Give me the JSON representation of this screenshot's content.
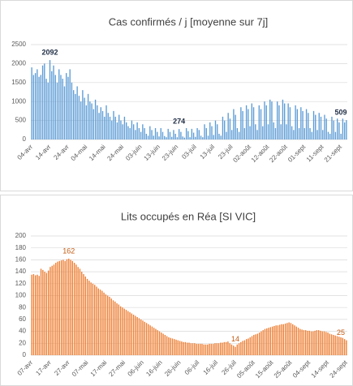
{
  "chart_data": [
    {
      "type": "bar",
      "title": "Cas confirmés / j [moyenne sur 7j]",
      "color": "#5b9bd5",
      "label_color": "#1f2d44",
      "grid": true,
      "ylim": [
        0,
        2500
      ],
      "yticks": [
        0,
        500,
        1000,
        1500,
        2000,
        2500
      ],
      "categories": [
        "04-avr",
        null,
        null,
        null,
        null,
        null,
        null,
        null,
        null,
        null,
        "14-avr",
        null,
        null,
        null,
        null,
        null,
        null,
        null,
        null,
        null,
        "24-avr",
        null,
        null,
        null,
        null,
        null,
        null,
        null,
        null,
        null,
        "04-mai",
        null,
        null,
        null,
        null,
        null,
        null,
        null,
        null,
        null,
        "14-mai",
        null,
        null,
        null,
        null,
        null,
        null,
        null,
        null,
        null,
        "24-mai",
        null,
        null,
        null,
        null,
        null,
        null,
        null,
        null,
        null,
        "03-juin",
        null,
        null,
        null,
        null,
        null,
        null,
        null,
        null,
        null,
        "13-juin",
        null,
        null,
        null,
        null,
        null,
        null,
        null,
        null,
        null,
        "23-juin",
        null,
        null,
        null,
        null,
        null,
        null,
        null,
        null,
        null,
        "03-juil",
        null,
        null,
        null,
        null,
        null,
        null,
        null,
        null,
        null,
        "13-juil",
        null,
        null,
        null,
        null,
        null,
        null,
        null,
        null,
        null,
        "23-juil",
        null,
        null,
        null,
        null,
        null,
        null,
        null,
        null,
        null,
        "02-août",
        null,
        null,
        null,
        null,
        null,
        null,
        null,
        null,
        null,
        "12-août",
        null,
        null,
        null,
        null,
        null,
        null,
        null,
        null,
        null,
        "22-août",
        null,
        null,
        null,
        null,
        null,
        null,
        null,
        null,
        null,
        "01-sept",
        null,
        null,
        null,
        null,
        null,
        null,
        null,
        null,
        null,
        "11-sept",
        null,
        null,
        null,
        null,
        null,
        null,
        null,
        null,
        null,
        "21-sept",
        null,
        null,
        null
      ],
      "values": [
        1900,
        1700,
        1750,
        1850,
        1650,
        1700,
        1950,
        2000,
        1600,
        1500,
        2092,
        1800,
        1950,
        1700,
        1500,
        1850,
        1700,
        1600,
        1400,
        1750,
        1650,
        1850,
        1500,
        1300,
        1200,
        1400,
        1150,
        1000,
        1300,
        1100,
        900,
        1200,
        1000,
        950,
        800,
        1050,
        900,
        700,
        850,
        750,
        600,
        900,
        700,
        600,
        500,
        750,
        600,
        450,
        650,
        500,
        400,
        600,
        450,
        350,
        300,
        500,
        400,
        250,
        450,
        300,
        200,
        400,
        300,
        150,
        100,
        350,
        250,
        100,
        300,
        200,
        80,
        300,
        200,
        90,
        60,
        280,
        200,
        70,
        250,
        150,
        60,
        274,
        200,
        80,
        50,
        300,
        220,
        60,
        280,
        180,
        70,
        300,
        250,
        100,
        60,
        400,
        300,
        100,
        450,
        350,
        120,
        500,
        400,
        150,
        100,
        600,
        500,
        200,
        700,
        550,
        250,
        800,
        650,
        300,
        200,
        850,
        750,
        300,
        900,
        800,
        350,
        950,
        850,
        400,
        250,
        900,
        800,
        350,
        1000,
        900,
        400,
        1050,
        1000,
        450,
        300,
        1000,
        900,
        400,
        1050,
        950,
        400,
        950,
        850,
        350,
        250,
        900,
        800,
        300,
        850,
        750,
        300,
        800,
        700,
        300,
        200,
        750,
        650,
        250,
        700,
        600,
        250,
        650,
        550,
        200,
        150,
        600,
        500,
        200,
        550,
        450,
        150,
        550,
        450,
        509
      ],
      "value_labels": [
        null,
        null,
        null,
        null,
        null,
        null,
        null,
        null,
        null,
        null,
        "2092",
        null,
        null,
        null,
        null,
        null,
        null,
        null,
        null,
        null,
        null,
        null,
        null,
        null,
        null,
        null,
        null,
        null,
        null,
        null,
        null,
        null,
        null,
        null,
        null,
        null,
        null,
        null,
        null,
        null,
        null,
        null,
        null,
        null,
        null,
        null,
        null,
        null,
        null,
        null,
        null,
        null,
        null,
        null,
        null,
        null,
        null,
        null,
        null,
        null,
        null,
        null,
        null,
        null,
        null,
        null,
        null,
        null,
        null,
        null,
        null,
        null,
        null,
        null,
        null,
        null,
        null,
        null,
        null,
        null,
        null,
        "274",
        null,
        null,
        null,
        null,
        null,
        null,
        null,
        null,
        null,
        null,
        null,
        null,
        null,
        null,
        null,
        null,
        null,
        null,
        null,
        null,
        null,
        null,
        null,
        null,
        null,
        null,
        null,
        null,
        null,
        null,
        null,
        null,
        null,
        null,
        null,
        null,
        null,
        null,
        null,
        null,
        null,
        null,
        null,
        null,
        null,
        null,
        null,
        null,
        null,
        null,
        null,
        null,
        null,
        null,
        null,
        null,
        null,
        null,
        null,
        null,
        null,
        null,
        null,
        null,
        null,
        null,
        null,
        null,
        null,
        null,
        null,
        null,
        null,
        null,
        null,
        null,
        null,
        null,
        null,
        null,
        null,
        null,
        null,
        null,
        null,
        null,
        null,
        null,
        null,
        null,
        null,
        "509"
      ]
    },
    {
      "type": "bar",
      "title": "Lits occupés en Réa [SI VIC]",
      "color": "#ed7d31",
      "label_color": "#c55a11",
      "grid": true,
      "ylim": [
        0,
        200
      ],
      "yticks": [
        0,
        20,
        40,
        60,
        80,
        100,
        120,
        140,
        160,
        180,
        200
      ],
      "categories": [
        "07-avr",
        null,
        null,
        null,
        null,
        null,
        null,
        null,
        null,
        null,
        "17-avr",
        null,
        null,
        null,
        null,
        null,
        null,
        null,
        null,
        null,
        "27-avr",
        null,
        null,
        null,
        null,
        null,
        null,
        null,
        null,
        null,
        "07-mai",
        null,
        null,
        null,
        null,
        null,
        null,
        null,
        null,
        null,
        "17-mai",
        null,
        null,
        null,
        null,
        null,
        null,
        null,
        null,
        null,
        "27-mai",
        null,
        null,
        null,
        null,
        null,
        null,
        null,
        null,
        null,
        "06-juin",
        null,
        null,
        null,
        null,
        null,
        null,
        null,
        null,
        null,
        "16-juin",
        null,
        null,
        null,
        null,
        null,
        null,
        null,
        null,
        null,
        "26-juin",
        null,
        null,
        null,
        null,
        null,
        null,
        null,
        null,
        null,
        "06-juil",
        null,
        null,
        null,
        null,
        null,
        null,
        null,
        null,
        null,
        "16-juil",
        null,
        null,
        null,
        null,
        null,
        null,
        null,
        null,
        null,
        "26-juil",
        null,
        null,
        null,
        null,
        null,
        null,
        null,
        null,
        null,
        "05-août",
        null,
        null,
        null,
        null,
        null,
        null,
        null,
        null,
        null,
        "15-août",
        null,
        null,
        null,
        null,
        null,
        null,
        null,
        null,
        null,
        "25-août",
        null,
        null,
        null,
        null,
        null,
        null,
        null,
        null,
        null,
        "04-sept",
        null,
        null,
        null,
        null,
        null,
        null,
        null,
        null,
        null,
        "14-sept",
        null,
        null,
        null,
        null,
        null,
        null,
        null,
        null,
        null,
        "24-sept"
      ],
      "values": [
        135,
        136,
        134,
        135,
        133,
        145,
        143,
        140,
        138,
        142,
        148,
        150,
        152,
        155,
        157,
        158,
        159,
        160,
        158,
        161,
        162,
        160,
        158,
        155,
        152,
        148,
        145,
        140,
        136,
        132,
        128,
        125,
        122,
        120,
        118,
        115,
        112,
        110,
        108,
        105,
        102,
        100,
        98,
        95,
        92,
        90,
        87,
        85,
        82,
        80,
        78,
        76,
        74,
        72,
        70,
        68,
        66,
        64,
        62,
        60,
        58,
        56,
        54,
        52,
        50,
        48,
        46,
        44,
        42,
        40,
        38,
        36,
        34,
        32,
        30,
        29,
        28,
        27,
        26,
        25,
        24,
        23,
        22,
        22,
        21,
        21,
        20,
        20,
        20,
        19,
        19,
        19,
        19,
        18,
        18,
        18,
        19,
        19,
        19,
        20,
        20,
        20,
        21,
        21,
        22,
        22,
        23,
        20,
        18,
        16,
        14,
        18,
        20,
        22,
        24,
        25,
        27,
        28,
        30,
        32,
        34,
        35,
        36,
        38,
        40,
        42,
        44,
        45,
        46,
        47,
        48,
        49,
        50,
        50,
        51,
        52,
        52,
        53,
        54,
        55,
        54,
        52,
        50,
        48,
        46,
        44,
        43,
        42,
        42,
        41,
        41,
        40,
        40,
        41,
        42,
        42,
        41,
        40,
        40,
        39,
        38,
        36,
        35,
        34,
        33,
        32,
        31,
        30,
        29,
        27,
        25
      ],
      "value_labels": [
        null,
        null,
        null,
        null,
        null,
        null,
        null,
        null,
        null,
        null,
        null,
        null,
        null,
        null,
        null,
        null,
        null,
        null,
        null,
        null,
        "162",
        null,
        null,
        null,
        null,
        null,
        null,
        null,
        null,
        null,
        null,
        null,
        null,
        null,
        null,
        null,
        null,
        null,
        null,
        null,
        null,
        null,
        null,
        null,
        null,
        null,
        null,
        null,
        null,
        null,
        null,
        null,
        null,
        null,
        null,
        null,
        null,
        null,
        null,
        null,
        null,
        null,
        null,
        null,
        null,
        null,
        null,
        null,
        null,
        null,
        null,
        null,
        null,
        null,
        null,
        null,
        null,
        null,
        null,
        null,
        null,
        null,
        null,
        null,
        null,
        null,
        null,
        null,
        null,
        null,
        null,
        null,
        null,
        null,
        null,
        null,
        null,
        null,
        null,
        null,
        null,
        null,
        null,
        null,
        null,
        null,
        null,
        null,
        null,
        null,
        "14",
        null,
        null,
        null,
        null,
        null,
        null,
        null,
        null,
        null,
        null,
        null,
        null,
        null,
        null,
        null,
        null,
        null,
        null,
        null,
        null,
        null,
        null,
        null,
        null,
        null,
        null,
        null,
        null,
        null,
        null,
        null,
        null,
        null,
        null,
        null,
        null,
        null,
        null,
        null,
        null,
        null,
        null,
        null,
        null,
        null,
        null,
        null,
        null,
        null,
        null,
        null,
        null,
        null,
        null,
        null,
        null,
        null,
        null,
        null,
        "25"
      ]
    }
  ]
}
